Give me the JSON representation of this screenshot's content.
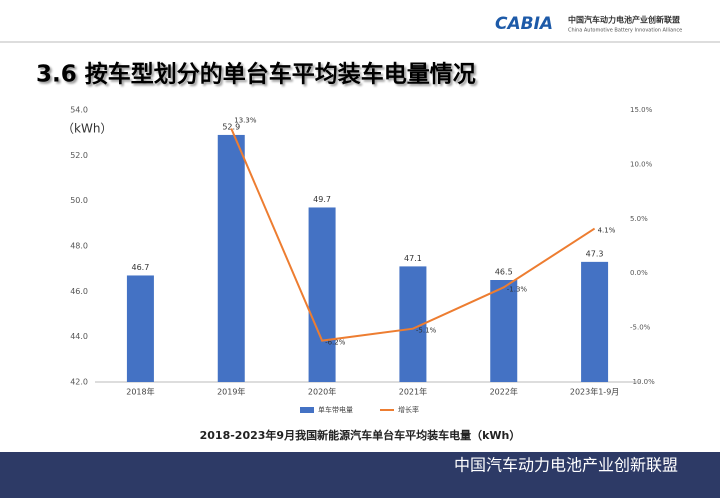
{
  "header": {
    "logo": "CABIA",
    "org_cn": "中国汽车动力电池产业创新联盟",
    "org_en": "China Automotive Battery Innovation Alliance"
  },
  "title": "3.6 按车型划分的单台车平均装车电量情况",
  "chart_data": {
    "type": "bar",
    "y_unit": "（kWh）",
    "caption": "2018-2023年9月我国新能源汽车单台车平均装车电量（kWh）",
    "categories": [
      "2018年",
      "2019年",
      "2020年",
      "2021年",
      "2022年",
      "2023年1-9月"
    ],
    "series": [
      {
        "name": "单车带电量",
        "type": "bar",
        "color": "#4472c4",
        "values": [
          46.7,
          52.9,
          49.7,
          47.1,
          46.5,
          47.3
        ]
      },
      {
        "name": "增长率",
        "type": "line",
        "axis": "y2",
        "color": "#ed7d31",
        "values": [
          null,
          13.3,
          -6.2,
          -5.1,
          -1.3,
          4.1
        ],
        "value_labels": [
          null,
          "13.3%",
          "-6.2%",
          "-5.1%",
          "-1.3%",
          "4.1%"
        ]
      }
    ],
    "ylim": [
      42,
      54
    ],
    "yticks": [
      {
        "value": 42,
        "label": "42.0"
      },
      {
        "value": 44,
        "label": "44.0"
      },
      {
        "value": 46,
        "label": "46.0"
      },
      {
        "value": 48,
        "label": "48.0"
      },
      {
        "value": 50,
        "label": "50.0"
      },
      {
        "value": 52,
        "label": "52.0"
      },
      {
        "value": 54,
        "label": "54.0"
      }
    ],
    "y2lim": [
      -10,
      15
    ],
    "y2ticks": [
      {
        "value": -10,
        "label": "-10.0%"
      },
      {
        "value": -5,
        "label": "-5.0%"
      },
      {
        "value": 0,
        "label": "0.0%"
      },
      {
        "value": 5,
        "label": "5.0%"
      },
      {
        "value": 10,
        "label": "10.0%"
      },
      {
        "value": 15,
        "label": "15.0%"
      }
    ],
    "grid": false,
    "legend": "bottom"
  },
  "footer": {
    "text": "中国汽车动力电池产业创新联盟"
  }
}
